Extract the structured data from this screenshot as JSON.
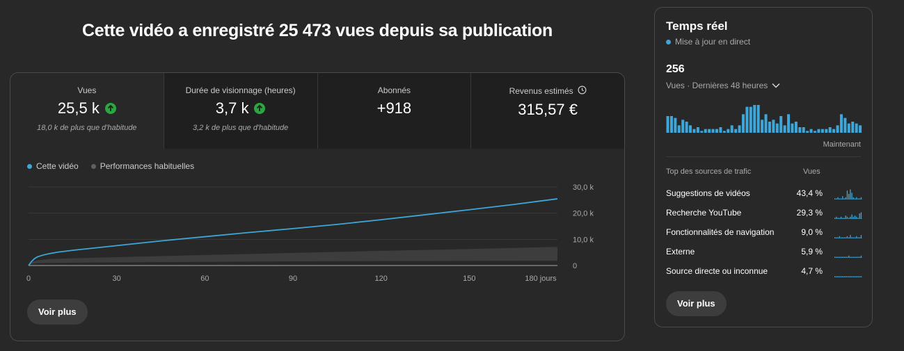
{
  "headline": "Cette vidéo a enregistré 25 473 vues depuis sa publication",
  "metrics": [
    {
      "label": "Vues",
      "value": "25,5 k",
      "note": "18,0 k de plus que d'habitude"
    },
    {
      "label": "Durée de visionnage (heures)",
      "value": "3,7 k",
      "note": "3,2 k de plus que d'habitude"
    },
    {
      "label": "Abonnés",
      "value": "+918",
      "note": ""
    },
    {
      "label": "Revenus estimés",
      "value": "315,57 €",
      "note": ""
    }
  ],
  "legend": {
    "this_video": "Cette vidéo",
    "typical": "Performances habituelles"
  },
  "colors": {
    "accent": "#3ea6d8",
    "typical_band": "#3d3d3d",
    "up": "#2ba640"
  },
  "chart_data": {
    "type": "line",
    "x_ticks": [
      "0",
      "30",
      "60",
      "90",
      "120",
      "150",
      "180 jours"
    ],
    "y_ticks": [
      "0",
      "10,0 k",
      "20,0 k",
      "30,0 k"
    ],
    "xlim": [
      0,
      180
    ],
    "ylim": [
      0,
      30000
    ],
    "series": [
      {
        "name": "Cette vidéo",
        "x": [
          0,
          1,
          2,
          3,
          5,
          7,
          10,
          15,
          20,
          30,
          45,
          60,
          75,
          90,
          105,
          120,
          135,
          150,
          165,
          180
        ],
        "y": [
          0,
          1500,
          2600,
          3300,
          4000,
          4500,
          5100,
          5800,
          6400,
          7600,
          9400,
          11000,
          12600,
          14100,
          15700,
          17500,
          19400,
          21300,
          23300,
          25473
        ]
      },
      {
        "name": "Performances habituelles",
        "x": [
          0,
          1,
          3,
          7,
          30,
          60,
          90,
          120,
          150,
          180
        ],
        "y_low": [
          0,
          600,
          900,
          1000,
          1200,
          1400,
          1600,
          1700,
          1750,
          1800
        ],
        "y_high": [
          0,
          1300,
          2000,
          2500,
          3200,
          4000,
          4800,
          5600,
          6300,
          7100
        ]
      }
    ]
  },
  "buttons": {
    "see_more": "Voir plus"
  },
  "realtime": {
    "title": "Temps réel",
    "subtitle": "Mise à jour en direct",
    "count": "256",
    "range": "Vues · Dernières 48 heures",
    "now_label": "Maintenant",
    "bars": [
      9,
      9,
      8,
      4,
      7,
      6,
      4,
      2,
      3,
      1,
      2,
      2,
      2,
      2,
      3,
      1,
      2,
      4,
      2,
      4,
      10,
      14,
      14,
      15,
      15,
      7,
      10,
      6,
      7,
      5,
      9,
      4,
      10,
      5,
      6,
      3,
      3,
      1,
      2,
      1,
      2,
      2,
      2,
      3,
      2,
      4,
      10,
      8,
      5,
      6,
      5,
      4
    ],
    "sources_header": "Top des sources de trafic",
    "views_header": "Vues",
    "sources": [
      {
        "name": "Suggestions de vidéos",
        "pct": "43,4 %"
      },
      {
        "name": "Recherche YouTube",
        "pct": "29,3 %"
      },
      {
        "name": "Fonctionnalités de navigation",
        "pct": "9,0 %"
      },
      {
        "name": "Externe",
        "pct": "5,9 %"
      },
      {
        "name": "Source directe ou inconnue",
        "pct": "4,7 %"
      }
    ]
  }
}
